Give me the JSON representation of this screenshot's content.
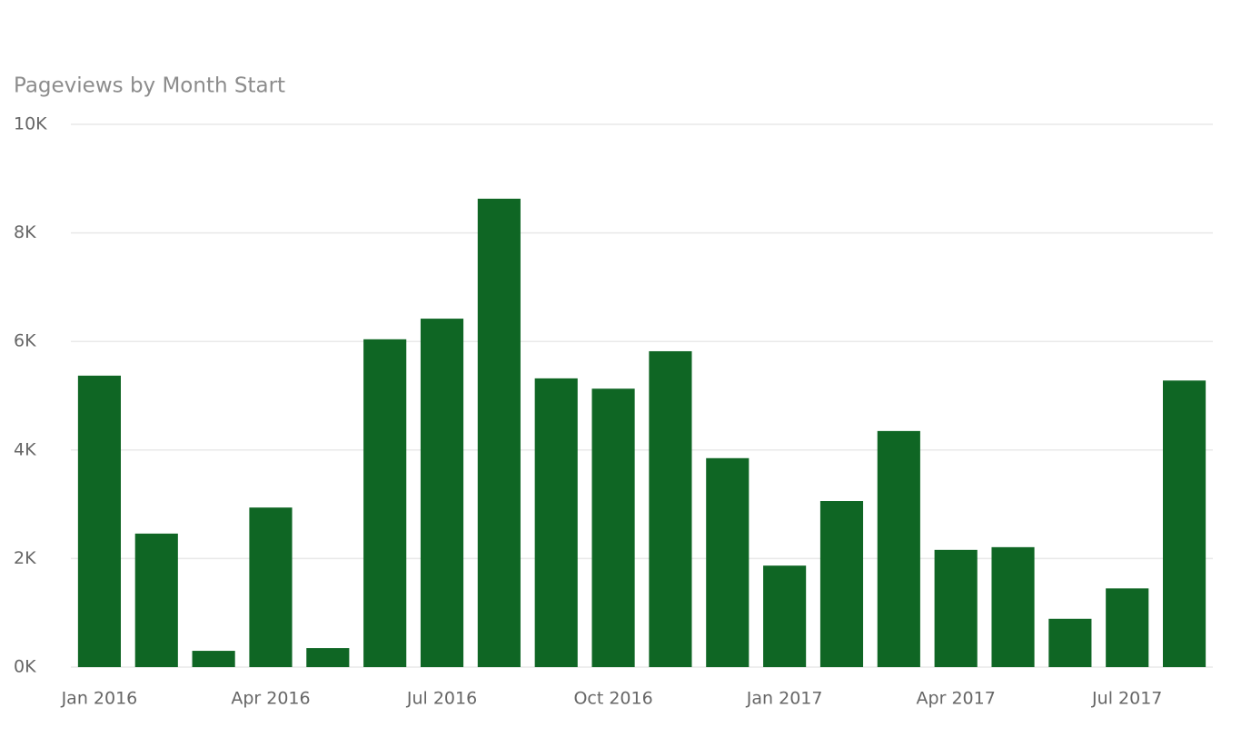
{
  "chart_data": {
    "type": "bar",
    "title": "Pageviews by Month Start",
    "categories": [
      "Jan 2016",
      null,
      null,
      "Apr 2016",
      null,
      null,
      "Jul 2016",
      null,
      null,
      "Oct 2016",
      null,
      null,
      "Jan 2017",
      null,
      null,
      "Apr 2017",
      null,
      null,
      "Jul 2017",
      null
    ],
    "values": [
      5370,
      2460,
      300,
      2940,
      350,
      6040,
      6420,
      8630,
      5320,
      5130,
      5820,
      3850,
      1870,
      3060,
      4350,
      2160,
      2210,
      890,
      1450,
      5280
    ],
    "color": "#0f6624",
    "ylim": [
      0,
      10000
    ],
    "yticks": [
      {
        "value": 0,
        "label": "0K"
      },
      {
        "value": 2000,
        "label": "2K"
      },
      {
        "value": 4000,
        "label": "4K"
      },
      {
        "value": 6000,
        "label": "6K"
      },
      {
        "value": 8000,
        "label": "8K"
      },
      {
        "value": 10000,
        "label": "10K"
      }
    ],
    "grid": true
  }
}
